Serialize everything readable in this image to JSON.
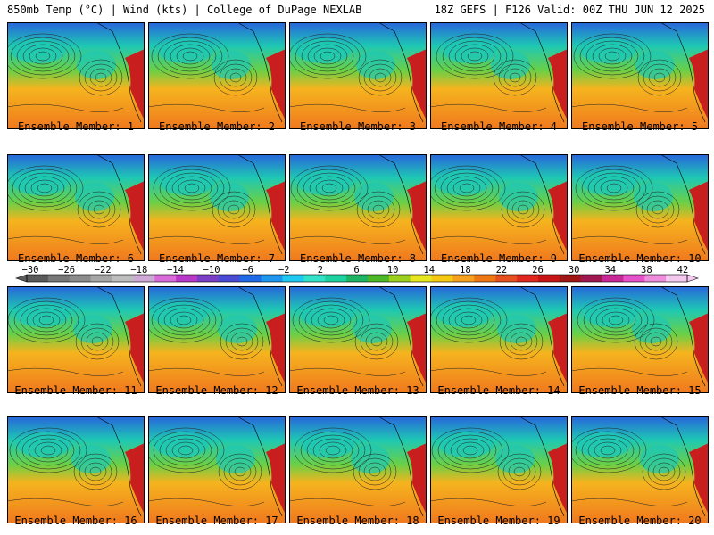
{
  "header": {
    "left": "850mb Temp (°C) | Wind (kts) | College of DuPage NEXLAB",
    "right": "18Z GEFS | F126 Valid: 00Z THU JUN 12 2025"
  },
  "members": [
    {
      "label": "Ensemble Member: 1"
    },
    {
      "label": "Ensemble Member: 2"
    },
    {
      "label": "Ensemble Member: 3"
    },
    {
      "label": "Ensemble Member: 4"
    },
    {
      "label": "Ensemble Member: 5"
    },
    {
      "label": "Ensemble Member: 6"
    },
    {
      "label": "Ensemble Member: 7"
    },
    {
      "label": "Ensemble Member: 8"
    },
    {
      "label": "Ensemble Member: 9"
    },
    {
      "label": "Ensemble Member: 10"
    },
    {
      "label": "Ensemble Member: 11"
    },
    {
      "label": "Ensemble Member: 12"
    },
    {
      "label": "Ensemble Member: 13"
    },
    {
      "label": "Ensemble Member: 14"
    },
    {
      "label": "Ensemble Member: 15"
    },
    {
      "label": "Ensemble Member: 16"
    },
    {
      "label": "Ensemble Member: 17"
    },
    {
      "label": "Ensemble Member: 18"
    },
    {
      "label": "Ensemble Member: 19"
    },
    {
      "label": "Ensemble Member: 20"
    }
  ],
  "colorbar": {
    "ticks": [
      "-30",
      "-26",
      "-22",
      "-18",
      "-14",
      "-10",
      "-6",
      "-2",
      "2",
      "6",
      "10",
      "14",
      "18",
      "22",
      "26",
      "30",
      "34",
      "38",
      "42"
    ],
    "colors": [
      "#5a5a5a",
      "#777777",
      "#8c8c8c",
      "#a6a6a6",
      "#bdbdbd",
      "#cfa9d6",
      "#d96ad9",
      "#b838c9",
      "#7a3fc4",
      "#4a4ad4",
      "#1f6ae6",
      "#1e96f0",
      "#1ec8f0",
      "#33e0c8",
      "#1ed2a0",
      "#1eb464",
      "#4cb828",
      "#9ccf1e",
      "#e6e61e",
      "#f5c814",
      "#f5a01e",
      "#f07814",
      "#e6501e",
      "#e0281e",
      "#c81414",
      "#a01414",
      "#a01850",
      "#c82896",
      "#e650c8",
      "#f08cdc",
      "#f5c8f0"
    ]
  },
  "map_colors": {
    "ocean_cold": "#1ec8b4",
    "ocean_mid": "#6ad046",
    "warm": "#f5b41e",
    "hot": "#f0781e",
    "land_hot": "#c81e1e",
    "north": "#2864dc"
  }
}
